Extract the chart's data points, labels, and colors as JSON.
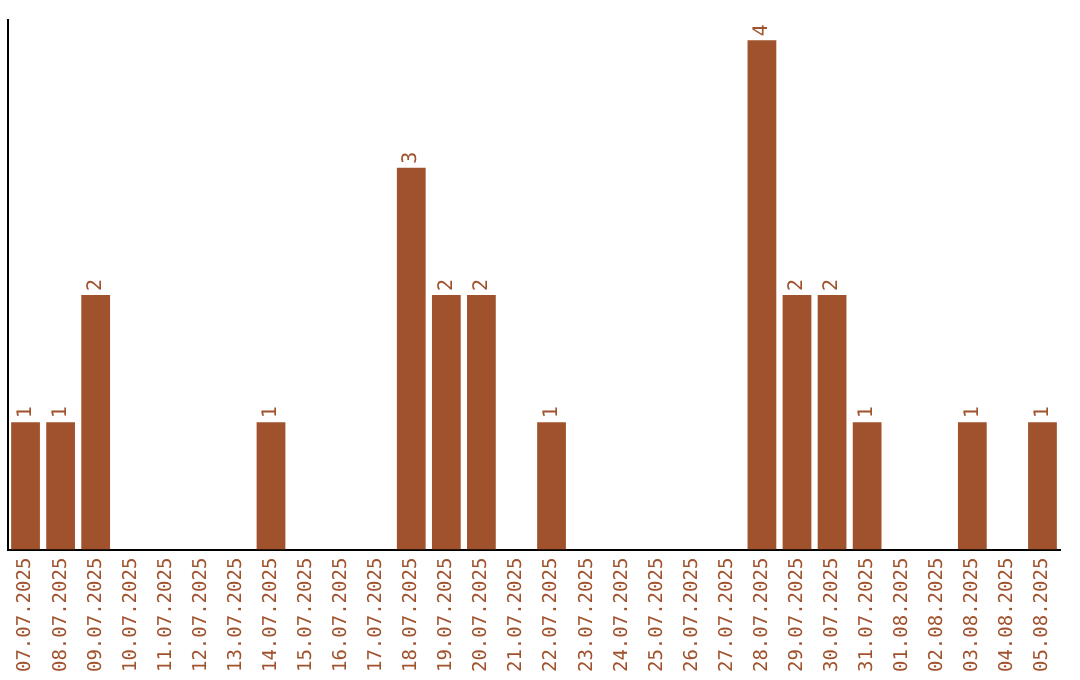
{
  "chart_data": {
    "type": "bar",
    "categories": [
      "07.07.2025",
      "08.07.2025",
      "09.07.2025",
      "10.07.2025",
      "11.07.2025",
      "12.07.2025",
      "13.07.2025",
      "14.07.2025",
      "15.07.2025",
      "16.07.2025",
      "17.07.2025",
      "18.07.2025",
      "19.07.2025",
      "20.07.2025",
      "21.07.2025",
      "22.07.2025",
      "23.07.2025",
      "24.07.2025",
      "25.07.2025",
      "26.07.2025",
      "27.07.2025",
      "28.07.2025",
      "29.07.2025",
      "30.07.2025",
      "31.07.2025",
      "01.08.2025",
      "02.08.2025",
      "03.08.2025",
      "04.08.2025",
      "05.08.2025"
    ],
    "values": [
      1,
      1,
      2,
      0,
      0,
      0,
      0,
      1,
      0,
      0,
      0,
      3,
      2,
      2,
      0,
      1,
      0,
      0,
      0,
      0,
      0,
      4,
      2,
      2,
      1,
      0,
      0,
      1,
      0,
      1
    ],
    "value_labels": [
      "1",
      "1",
      "2",
      null,
      null,
      null,
      null,
      "1",
      null,
      null,
      null,
      "3",
      "2",
      "2",
      null,
      "1",
      null,
      null,
      null,
      null,
      null,
      "4",
      "2",
      "2",
      "1",
      null,
      null,
      "1",
      null,
      "1"
    ],
    "color": "#a0522d",
    "ylim": [
      0,
      4.16
    ],
    "grid": false,
    "legend": false
  }
}
